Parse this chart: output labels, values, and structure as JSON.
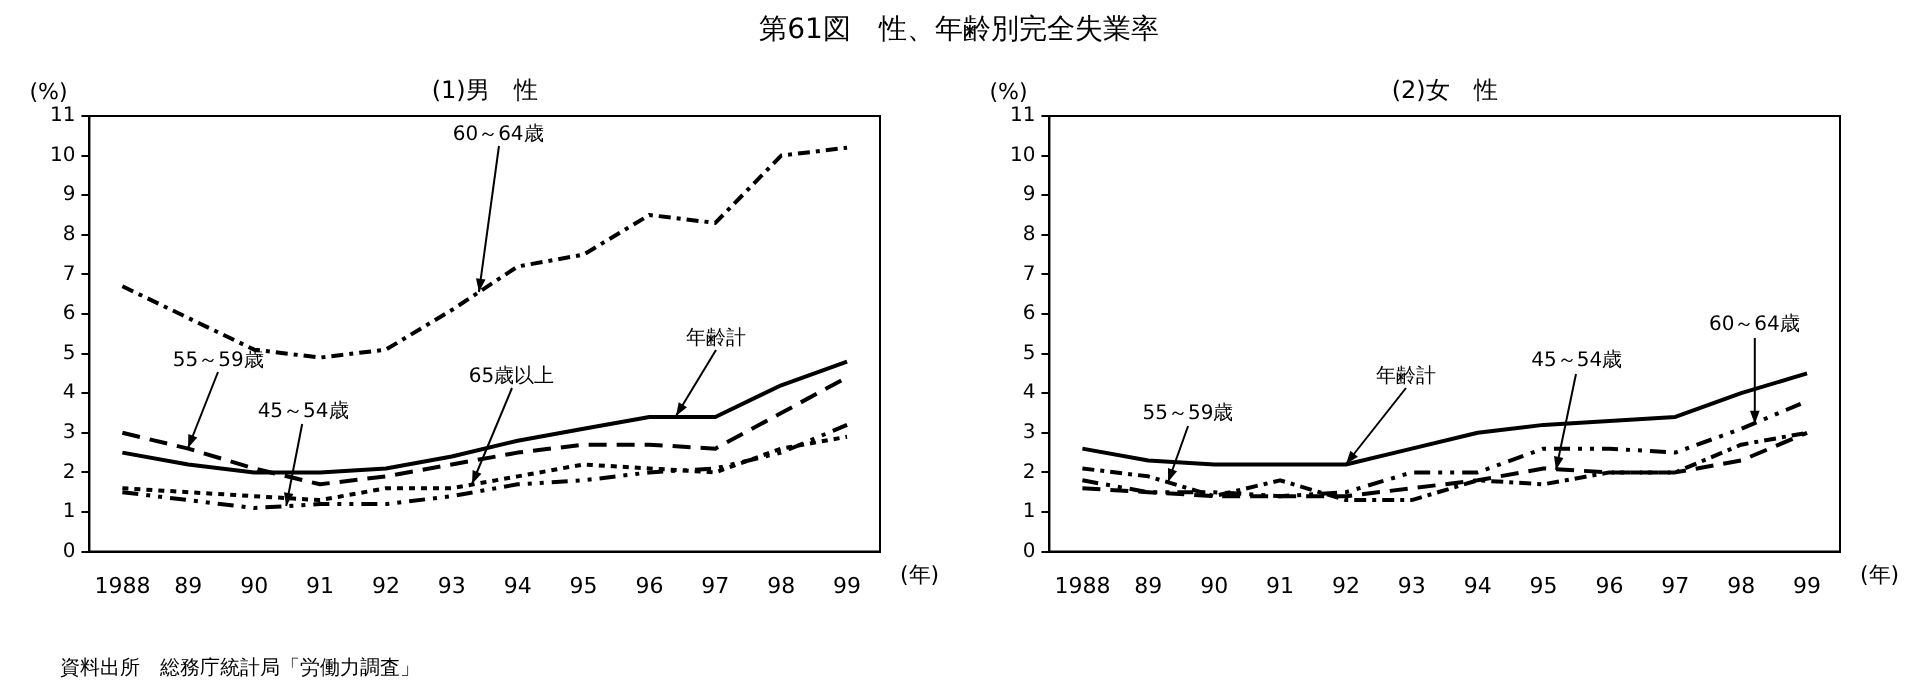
{
  "chart_data": [
    {
      "type": "line",
      "title": "第61図　性、年齢別完全失業率",
      "subtitle": "(1)男　性",
      "xlabel": "(年)",
      "ylabel": "(%)",
      "categories": [
        "1988",
        "89",
        "90",
        "91",
        "92",
        "93",
        "94",
        "95",
        "96",
        "97",
        "98",
        "99"
      ],
      "ylim": [
        0,
        11
      ],
      "yticks": [
        0,
        1,
        2,
        3,
        4,
        5,
        6,
        7,
        8,
        9,
        10,
        11
      ],
      "grid": false,
      "legend": false,
      "marker": "none",
      "annotations": [
        "資料出所　総務庁統計局「労働力調査」"
      ],
      "series": [
        {
          "name": "年齢計",
          "color": "#000000",
          "line_style": "solid",
          "values": [
            2.5,
            2.2,
            2.0,
            2.0,
            2.1,
            2.4,
            2.8,
            3.1,
            3.4,
            3.4,
            4.2,
            4.8
          ]
        },
        {
          "name": "60～64歳",
          "color": "#000000",
          "line_style": "dashed",
          "values": [
            6.7,
            5.9,
            5.1,
            4.9,
            5.1,
            6.1,
            7.2,
            7.5,
            8.5,
            8.3,
            10.0,
            10.2
          ]
        },
        {
          "name": "55～59歳",
          "color": "#000000",
          "line_style": "dashed",
          "values": [
            3.0,
            2.6,
            2.1,
            1.7,
            1.9,
            2.2,
            2.5,
            2.7,
            2.7,
            2.6,
            3.5,
            4.4
          ]
        },
        {
          "name": "65歳以上",
          "color": "#000000",
          "line_style": "dotted",
          "values": [
            1.6,
            1.5,
            1.4,
            1.3,
            1.6,
            1.6,
            1.9,
            2.2,
            2.1,
            2.0,
            2.6,
            2.9
          ]
        },
        {
          "name": "45～54歳",
          "color": "#000000",
          "line_style": "dashed",
          "values": [
            1.5,
            1.3,
            1.1,
            1.2,
            1.2,
            1.4,
            1.7,
            1.8,
            2.0,
            2.1,
            2.5,
            3.2
          ]
        }
      ]
    },
    {
      "type": "line",
      "subtitle": "(2)女　性",
      "xlabel": "(年)",
      "ylabel": "(%)",
      "categories": [
        "1988",
        "89",
        "90",
        "91",
        "92",
        "93",
        "94",
        "95",
        "96",
        "97",
        "98",
        "99"
      ],
      "ylim": [
        0,
        11
      ],
      "yticks": [
        0,
        1,
        2,
        3,
        4,
        5,
        6,
        7,
        8,
        9,
        10,
        11
      ],
      "grid": false,
      "legend": false,
      "marker": "none",
      "series": [
        {
          "name": "年齢計",
          "color": "#000000",
          "line_style": "solid",
          "values": [
            2.6,
            2.3,
            2.2,
            2.2,
            2.2,
            2.6,
            3.0,
            3.2,
            3.3,
            3.4,
            4.0,
            4.5
          ]
        },
        {
          "name": "55～59歳",
          "color": "#000000",
          "line_style": "dashed",
          "values": [
            2.1,
            1.9,
            1.4,
            1.8,
            1.3,
            1.3,
            1.8,
            1.7,
            2.0,
            2.0,
            2.7,
            3.0
          ]
        },
        {
          "name": "45～54歳",
          "color": "#000000",
          "line_style": "dashed",
          "values": [
            1.6,
            1.5,
            1.4,
            1.4,
            1.4,
            1.6,
            1.8,
            2.1,
            2.0,
            2.0,
            2.3,
            3.0
          ]
        },
        {
          "name": "60～64歳",
          "color": "#000000",
          "line_style": "dashed",
          "values": [
            1.8,
            1.5,
            1.5,
            1.4,
            1.5,
            2.0,
            2.0,
            2.6,
            2.6,
            2.5,
            3.1,
            3.8
          ]
        }
      ]
    }
  ]
}
